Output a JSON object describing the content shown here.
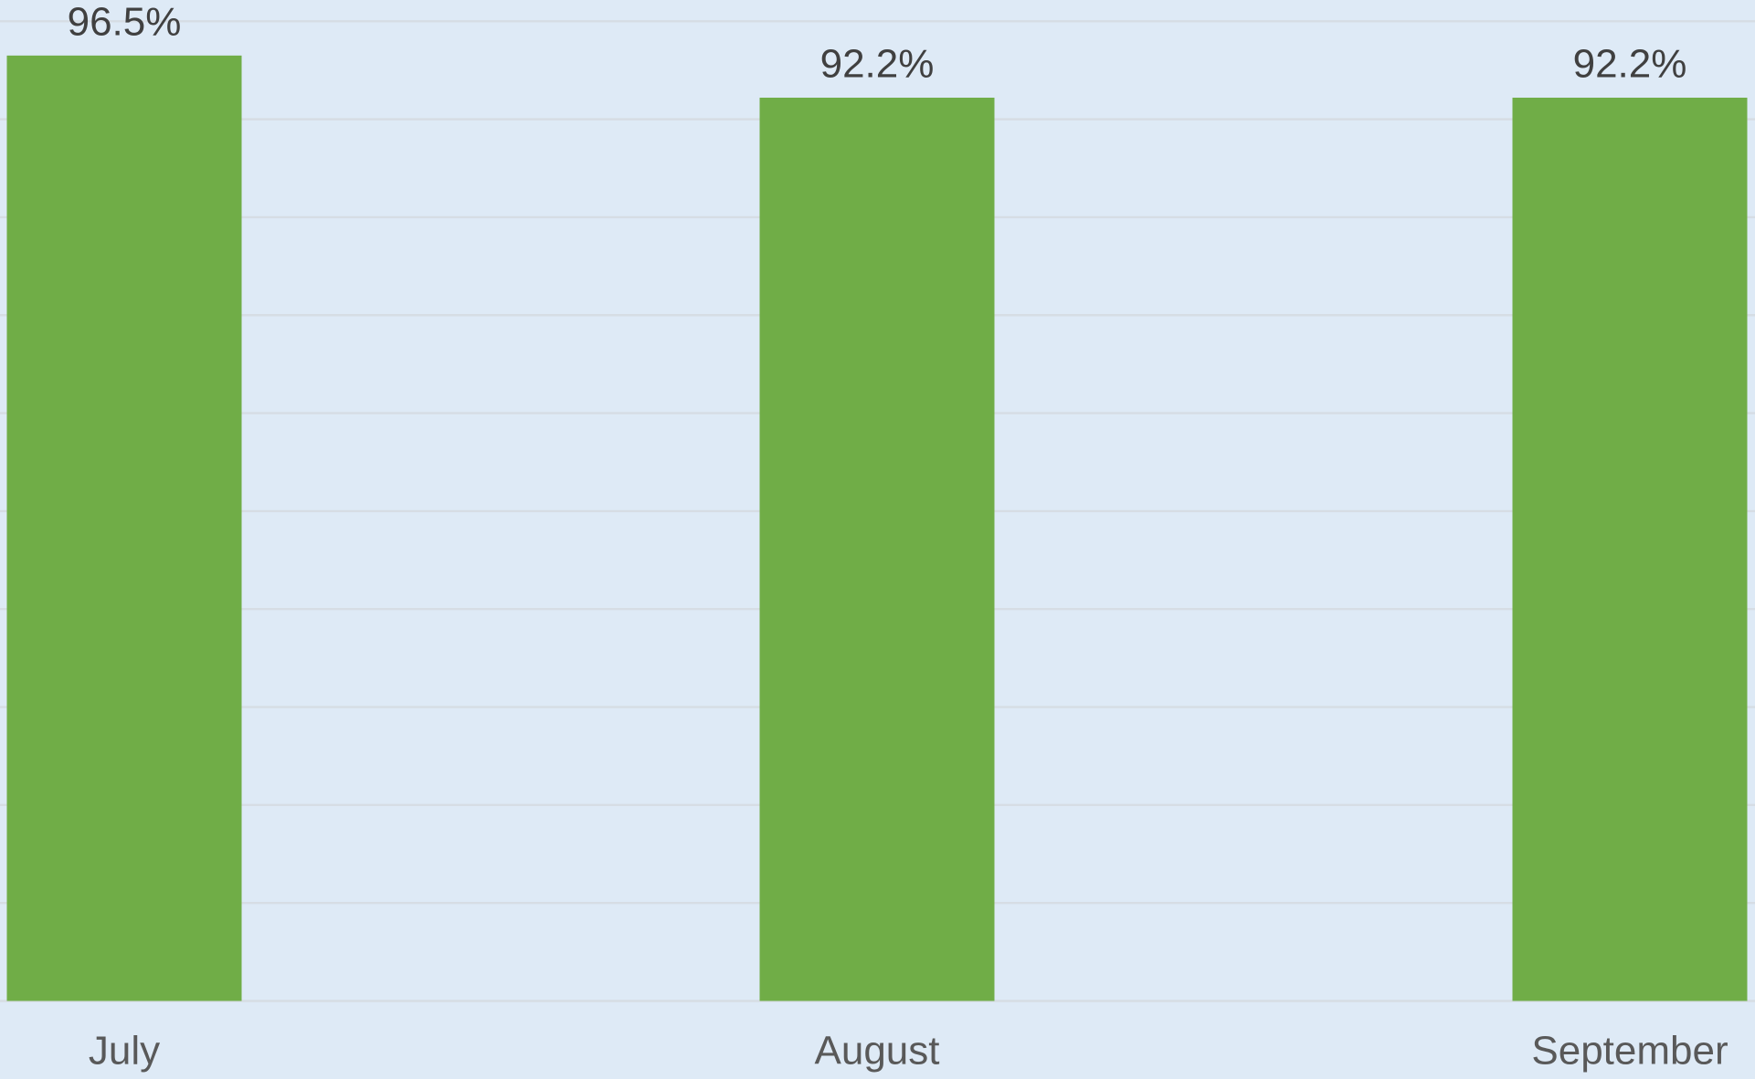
{
  "chart_data": {
    "type": "bar",
    "categories": [
      "July",
      "August",
      "September"
    ],
    "values": [
      96.5,
      92.2,
      92.2
    ],
    "value_labels": [
      "96.5%",
      "92.2%",
      "92.2%"
    ],
    "color": "#70ad47",
    "ylim": [
      0,
      100
    ],
    "yticks": [
      0,
      10,
      20,
      30,
      40,
      50,
      60,
      70,
      80,
      90,
      100
    ],
    "grid": true
  }
}
